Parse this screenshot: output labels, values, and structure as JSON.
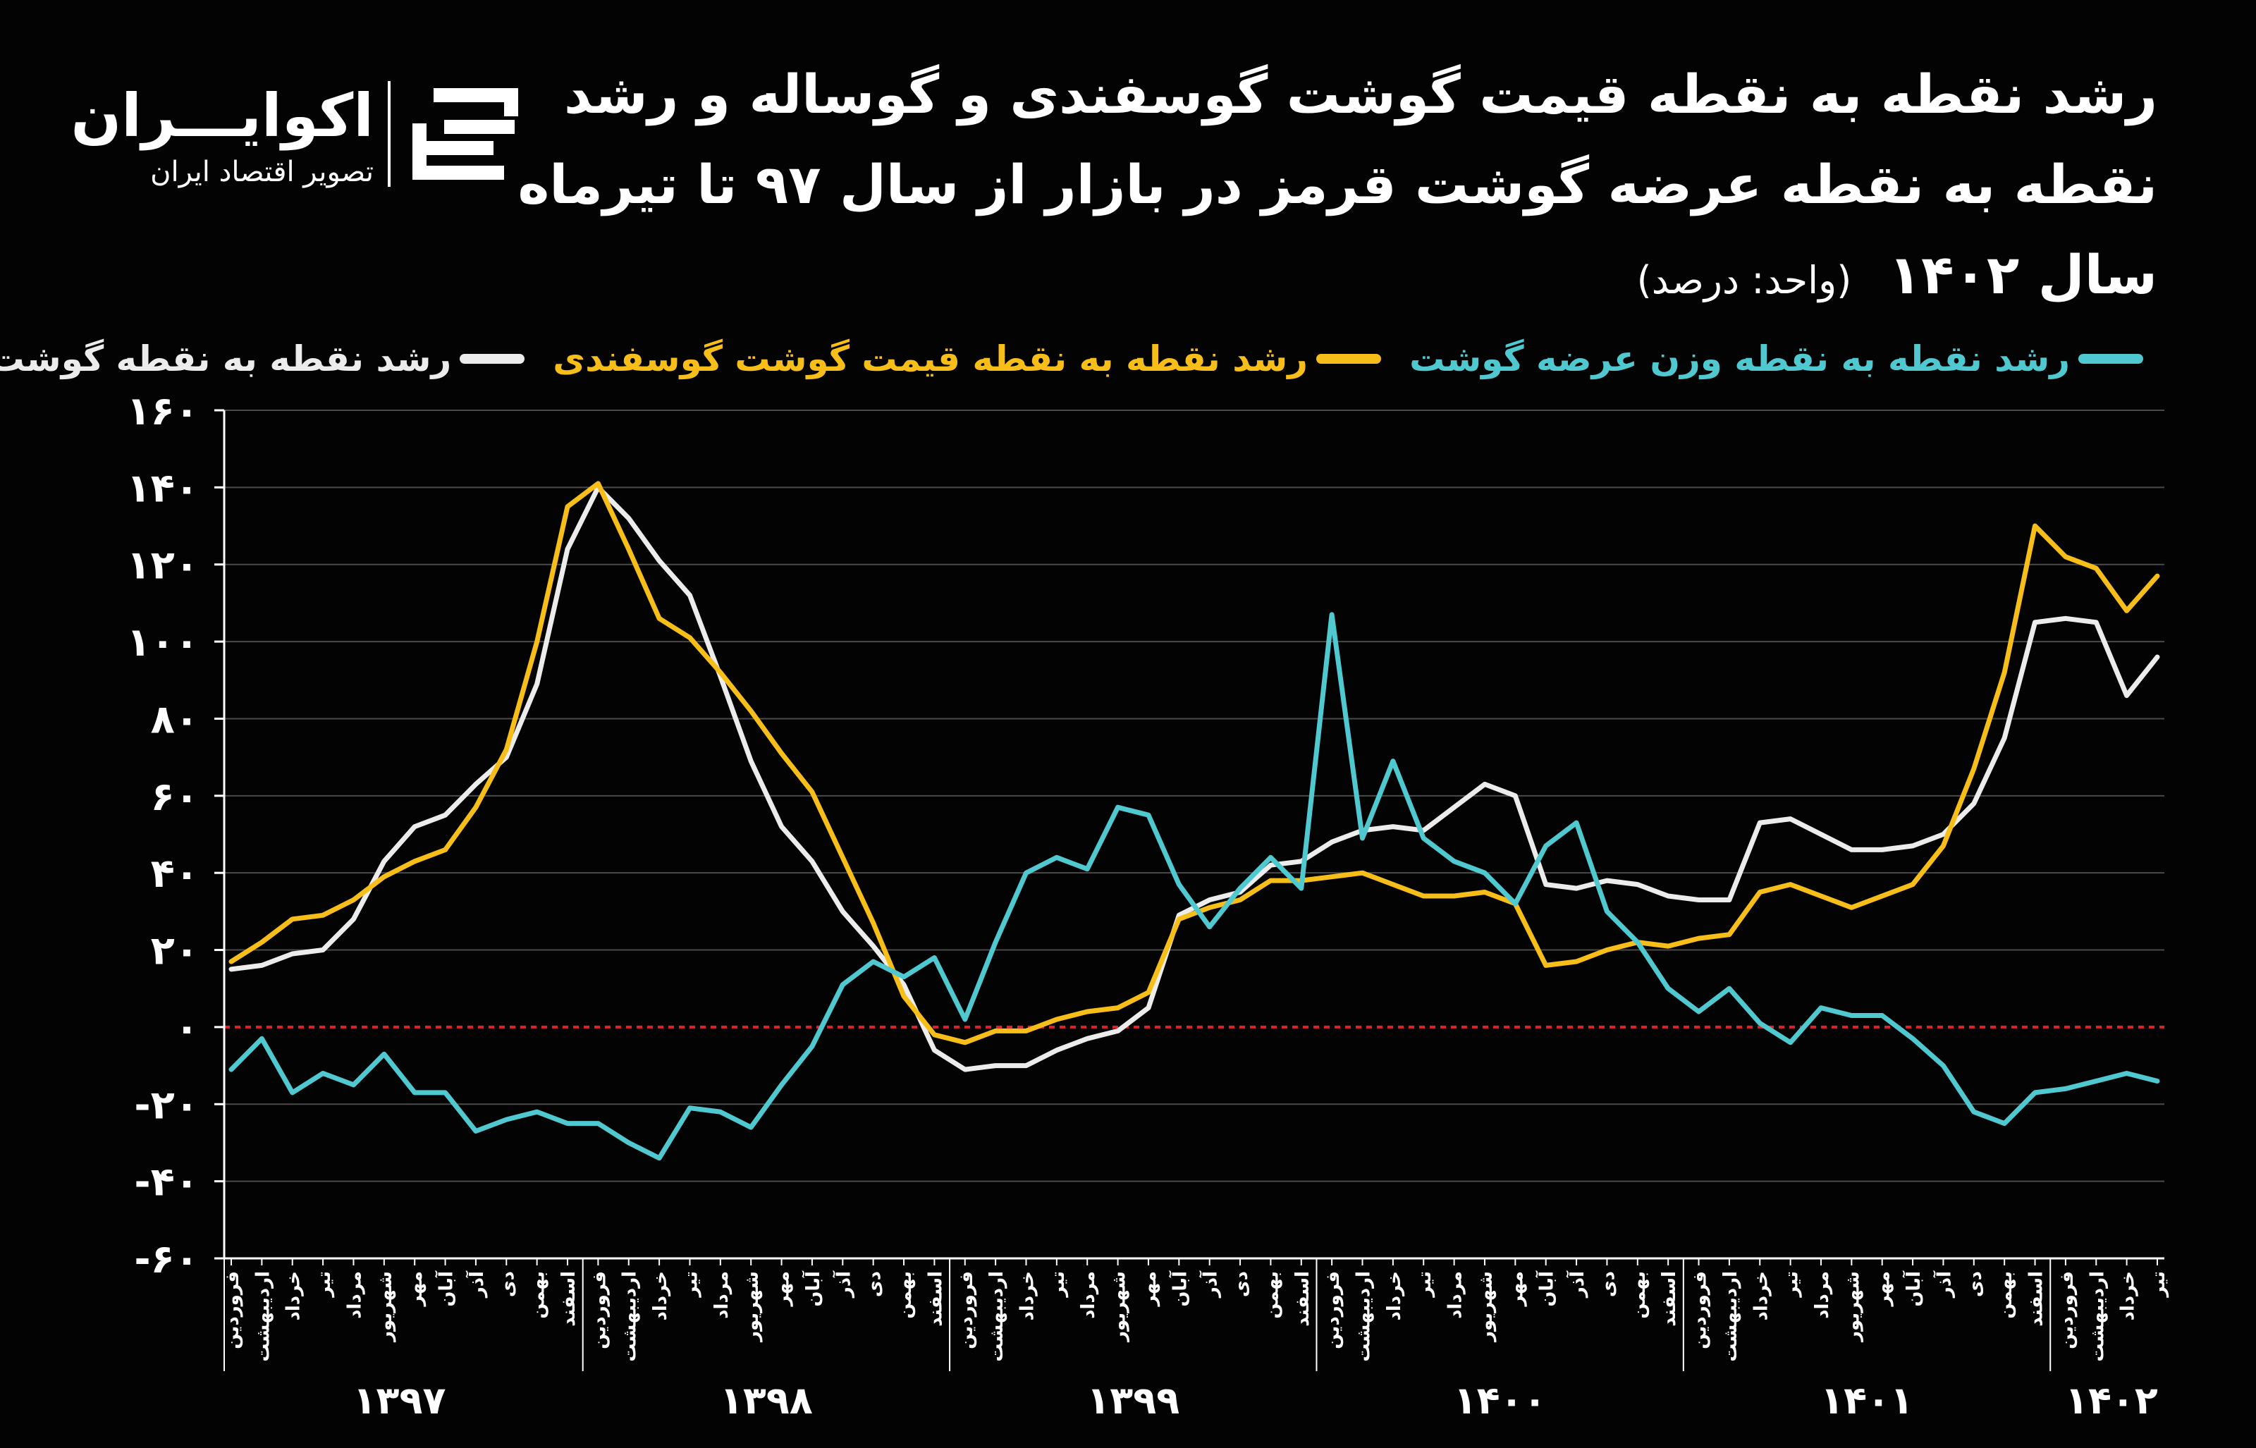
{
  "title": {
    "line1": "رشد نقطه به نقطه قیمت گوشت گوسفندی و گوساله و رشد",
    "line2": "نقطه به نقطه عرضه گوشت قرمز در بازار از سال ۹۷ تا تیرماه",
    "line3": "سال ۱۴۰۲",
    "unit": "(واحد: درصد)"
  },
  "logo": {
    "name": "اکوایـــران",
    "subtitle": "تصویر اقتصاد ایران"
  },
  "colors": {
    "background": "#030303",
    "supply": "#4FC8D0",
    "lamb": "#F7BE1A",
    "beef": "#ECECEC",
    "zero_line": "#E0202A",
    "grid": "#4A4A4A"
  },
  "chart_data": {
    "type": "line",
    "ylim": [
      -60,
      160
    ],
    "yticks": [
      -60,
      -40,
      -20,
      0,
      20,
      40,
      60,
      80,
      100,
      120,
      140,
      160
    ],
    "ytick_labels": [
      "-۶۰",
      "-۴۰",
      "-۲۰",
      "۰",
      "۲۰",
      "۴۰",
      "۶۰",
      "۸۰",
      "۱۰۰",
      "۱۲۰",
      "۱۴۰",
      "۱۶۰"
    ],
    "legend_position": "top",
    "grid": true,
    "month_labels": [
      "فروردین",
      "اردیبهشت",
      "خرداد",
      "تیر",
      "مرداد",
      "شهریور",
      "مهر",
      "آبان",
      "آذر",
      "دی",
      "بهمن",
      "اسفند",
      "فروردین",
      "اردیبهشت",
      "خرداد",
      "تیر",
      "مرداد",
      "شهریور",
      "مهر",
      "آبان",
      "آذر",
      "دی",
      "بهمن",
      "اسفند",
      "فروردین",
      "اردیبهشت",
      "خرداد",
      "تیر",
      "مرداد",
      "شهریور",
      "مهر",
      "آبان",
      "آذر",
      "دی",
      "بهمن",
      "اسفند",
      "فروردین",
      "اردیبهشت",
      "خرداد",
      "تیر",
      "مرداد",
      "شهریور",
      "مهر",
      "آبان",
      "آذر",
      "دی",
      "بهمن",
      "اسفند",
      "فروردین",
      "اردیبهشت",
      "خرداد",
      "تیر",
      "مرداد",
      "شهریور",
      "مهر",
      "آبان",
      "آذر",
      "دی",
      "بهمن",
      "اسفند",
      "فروردین",
      "اردیبهشت",
      "خرداد",
      "تیر"
    ],
    "years": [
      {
        "label": "۱۳۹۷",
        "months": 12
      },
      {
        "label": "۱۳۹۸",
        "months": 12
      },
      {
        "label": "۱۳۹۹",
        "months": 12
      },
      {
        "label": "۱۴۰۰",
        "months": 12
      },
      {
        "label": "۱۴۰۱",
        "months": 12
      },
      {
        "label": "۱۴۰۲",
        "months": 4
      }
    ],
    "series": [
      {
        "name": "رشد نقطه به نقطه وزن عرضه گوشت",
        "key": "supply",
        "values": [
          -11,
          -3,
          -17,
          -12,
          -15,
          -7,
          -17,
          -17,
          -27,
          -24,
          -22,
          -25,
          -25,
          -30,
          -34,
          -21,
          -22,
          -26,
          -15,
          -5,
          11,
          17,
          13,
          18,
          2,
          22,
          40,
          44,
          41,
          57,
          55,
          37,
          26,
          36,
          44,
          36,
          107,
          49,
          69,
          49,
          43,
          40,
          32,
          47,
          53,
          30,
          22,
          10,
          4,
          10,
          1,
          -4,
          5,
          3,
          3,
          -3,
          -10,
          -22,
          -25,
          -17,
          -16,
          -14,
          -12,
          -14
        ]
      },
      {
        "name": "رشد نقطه به نقطه قیمت گوشت گوسفندی",
        "key": "lamb",
        "values": [
          17,
          22,
          28,
          29,
          33,
          39,
          43,
          46,
          57,
          72,
          100,
          135,
          141,
          124,
          106,
          101,
          92,
          82,
          71,
          61,
          44,
          27,
          8,
          -2,
          -4,
          -1,
          -1,
          2,
          4,
          5,
          9,
          28,
          31,
          33,
          38,
          38,
          39,
          40,
          37,
          34,
          34,
          35,
          32,
          16,
          17,
          20,
          22,
          21,
          23,
          24,
          35,
          37,
          34,
          31,
          34,
          37,
          47,
          67,
          92,
          130,
          122,
          119,
          108,
          117
        ]
      },
      {
        "name": "رشد نقطه به نقطه گوشت گاو",
        "key": "beef",
        "values": [
          15,
          16,
          19,
          20,
          28,
          43,
          52,
          55,
          63,
          70,
          89,
          124,
          140,
          132,
          121,
          112,
          91,
          69,
          52,
          43,
          30,
          21,
          11,
          -6,
          -11,
          -10,
          -10,
          -6,
          -3,
          -1,
          5,
          29,
          33,
          35,
          42,
          43,
          48,
          51,
          52,
          51,
          57,
          63,
          60,
          37,
          36,
          38,
          37,
          34,
          33,
          33,
          53,
          54,
          50,
          46,
          46,
          47,
          50,
          58,
          75,
          105,
          106,
          105,
          86,
          96
        ]
      }
    ]
  }
}
